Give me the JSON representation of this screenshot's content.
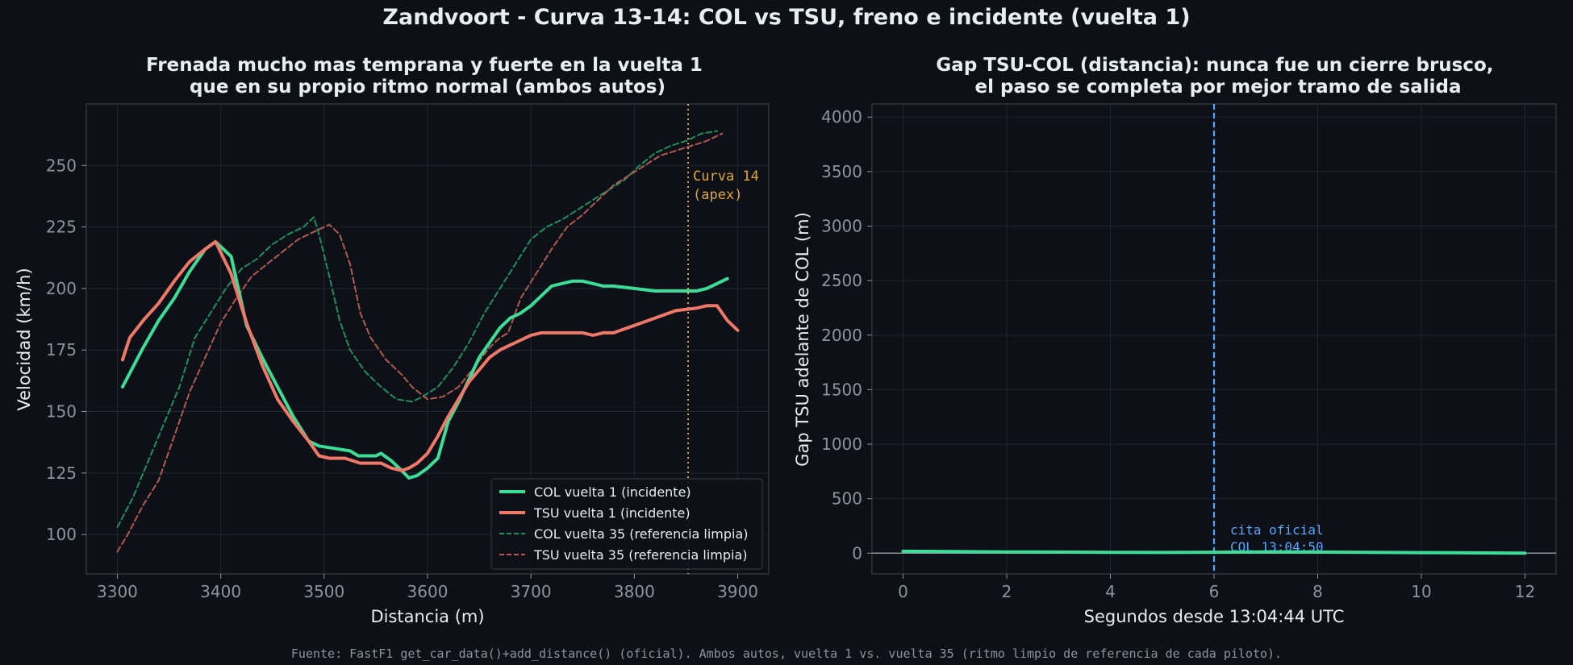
{
  "suptitle": "Zandvoort - Curva 13-14: COL vs TSU, freno e incidente (vuelta 1)",
  "footer": "Fuente: FastF1 get_car_data()+add_distance() (oficial). Ambos autos, vuelta 1 vs. vuelta 35 (ritmo limpio de referencia de cada piloto).",
  "colors": {
    "background": "#0d1117",
    "grid": "#1f2733",
    "col": "#3ddc97",
    "tsu": "#f07868",
    "col_ref": "#1f8f5f",
    "tsu_ref": "#b35a50",
    "apex_line": "#e3a72f",
    "quote_line": "#58a6ff",
    "zero_line": "#8b949e"
  },
  "chart_data": [
    {
      "type": "line",
      "title": "Frenada mucho mas temprana y fuerte en la vuelta 1\nque en su propio ritmo normal (ambos autos)",
      "xlabel": "Distancia (m)",
      "ylabel": "Velocidad (km/h)",
      "xlim": [
        3270,
        3930
      ],
      "ylim": [
        84,
        275
      ],
      "xticks": [
        3300,
        3400,
        3500,
        3600,
        3700,
        3800,
        3900
      ],
      "yticks": [
        100,
        125,
        150,
        175,
        200,
        225,
        250
      ],
      "grid": true,
      "legend_position": "lower-right",
      "annotation": {
        "text": "Curva 14\n(apex)",
        "x": 3852
      },
      "series": [
        {
          "name": "COL vuelta 1 (incidente)",
          "style": "solid",
          "color": "#3ddc97",
          "x": [
            3305,
            3325,
            3340,
            3355,
            3370,
            3385,
            3395,
            3410,
            3425,
            3440,
            3455,
            3470,
            3485,
            3495,
            3510,
            3525,
            3533,
            3540,
            3550,
            3555,
            3565,
            3575,
            3582,
            3590,
            3600,
            3610,
            3620,
            3630,
            3640,
            3650,
            3660,
            3670,
            3680,
            3690,
            3700,
            3710,
            3720,
            3730,
            3740,
            3750,
            3760,
            3770,
            3780,
            3800,
            3820,
            3840,
            3860,
            3870,
            3880,
            3890
          ],
          "y": [
            160,
            176,
            187,
            196,
            207,
            216,
            219,
            213,
            185,
            172,
            160,
            148,
            138,
            136,
            135,
            134,
            132,
            132,
            132,
            133,
            130,
            126,
            123,
            124,
            127,
            131,
            146,
            154,
            163,
            172,
            178,
            184,
            188,
            190,
            193,
            197,
            201,
            202,
            203,
            203,
            202,
            201,
            201,
            200,
            199,
            199,
            199,
            200,
            202,
            204
          ]
        },
        {
          "name": "TSU vuelta 1 (incidente)",
          "style": "solid",
          "color": "#f07868",
          "x": [
            3305,
            3312,
            3325,
            3340,
            3355,
            3370,
            3385,
            3395,
            3410,
            3425,
            3440,
            3455,
            3470,
            3485,
            3495,
            3505,
            3520,
            3535,
            3545,
            3555,
            3565,
            3575,
            3582,
            3590,
            3600,
            3610,
            3620,
            3630,
            3640,
            3650,
            3660,
            3670,
            3680,
            3690,
            3700,
            3710,
            3720,
            3730,
            3740,
            3750,
            3760,
            3770,
            3780,
            3800,
            3820,
            3840,
            3860,
            3870,
            3880,
            3890,
            3900
          ],
          "y": [
            171,
            180,
            187,
            194,
            203,
            211,
            216,
            219,
            206,
            186,
            169,
            155,
            146,
            138,
            132,
            131,
            131,
            129,
            129,
            129,
            127,
            126,
            127,
            129,
            133,
            140,
            148,
            155,
            162,
            167,
            172,
            175,
            177,
            179,
            181,
            182,
            182,
            182,
            182,
            182,
            181,
            182,
            182,
            185,
            188,
            191,
            192,
            193,
            193,
            187,
            183
          ]
        },
        {
          "name": "COL vuelta 35 (referencia limpia)",
          "style": "dashed",
          "color": "#1f8f5f",
          "x": [
            3300,
            3315,
            3330,
            3345,
            3360,
            3375,
            3390,
            3405,
            3420,
            3435,
            3450,
            3465,
            3480,
            3490,
            3495,
            3505,
            3515,
            3525,
            3540,
            3555,
            3570,
            3585,
            3595,
            3610,
            3625,
            3640,
            3655,
            3670,
            3685,
            3700,
            3715,
            3730,
            3745,
            3760,
            3775,
            3790,
            3805,
            3820,
            3835,
            3850,
            3865,
            3880
          ],
          "y": [
            103,
            115,
            130,
            145,
            160,
            180,
            190,
            200,
            208,
            212,
            218,
            222,
            225,
            229,
            222,
            205,
            187,
            175,
            166,
            160,
            155,
            154,
            156,
            160,
            168,
            178,
            190,
            200,
            210,
            220,
            225,
            228,
            232,
            236,
            240,
            244,
            250,
            255,
            258,
            260,
            263,
            264
          ]
        },
        {
          "name": "TSU vuelta 35 (referencia limpia)",
          "style": "dashed",
          "color": "#b35a50",
          "x": [
            3300,
            3310,
            3325,
            3340,
            3355,
            3370,
            3385,
            3400,
            3415,
            3430,
            3445,
            3460,
            3475,
            3490,
            3505,
            3515,
            3525,
            3535,
            3545,
            3560,
            3575,
            3585,
            3600,
            3615,
            3630,
            3645,
            3660,
            3670,
            3678,
            3690,
            3705,
            3720,
            3735,
            3750,
            3765,
            3780,
            3795,
            3810,
            3825,
            3840,
            3855,
            3870,
            3885
          ],
          "y": [
            93,
            100,
            112,
            122,
            140,
            158,
            172,
            186,
            196,
            205,
            210,
            215,
            220,
            223,
            226,
            222,
            210,
            190,
            180,
            171,
            165,
            160,
            155,
            156,
            160,
            168,
            176,
            180,
            182,
            196,
            206,
            216,
            225,
            230,
            236,
            242,
            246,
            250,
            254,
            256,
            258,
            260,
            263
          ]
        }
      ]
    },
    {
      "type": "line",
      "title": "Gap TSU-COL (distancia): nunca fue un cierre brusco,\nel paso se completa por mejor tramo de salida",
      "xlabel": "Segundos desde 13:04:44 UTC",
      "ylabel": "Gap TSU adelante de COL (m)",
      "xlim": [
        -0.6,
        12.6
      ],
      "ylim": [
        -190,
        4120
      ],
      "xticks": [
        0,
        2,
        4,
        6,
        8,
        10,
        12
      ],
      "yticks": [
        0,
        500,
        1000,
        1500,
        2000,
        2500,
        3000,
        3500,
        4000
      ],
      "grid": true,
      "annotation": {
        "text": "cita oficial\nCOL 13:04:50",
        "x": 6
      },
      "series": [
        {
          "style": "solid",
          "color": "#3ddc97",
          "x": [
            0,
            1,
            2,
            3,
            4,
            5,
            6,
            7,
            8,
            9,
            10,
            11,
            12
          ],
          "y": [
            18,
            15,
            12,
            10,
            8,
            7,
            9,
            12,
            10,
            8,
            5,
            3,
            0
          ]
        }
      ]
    }
  ]
}
